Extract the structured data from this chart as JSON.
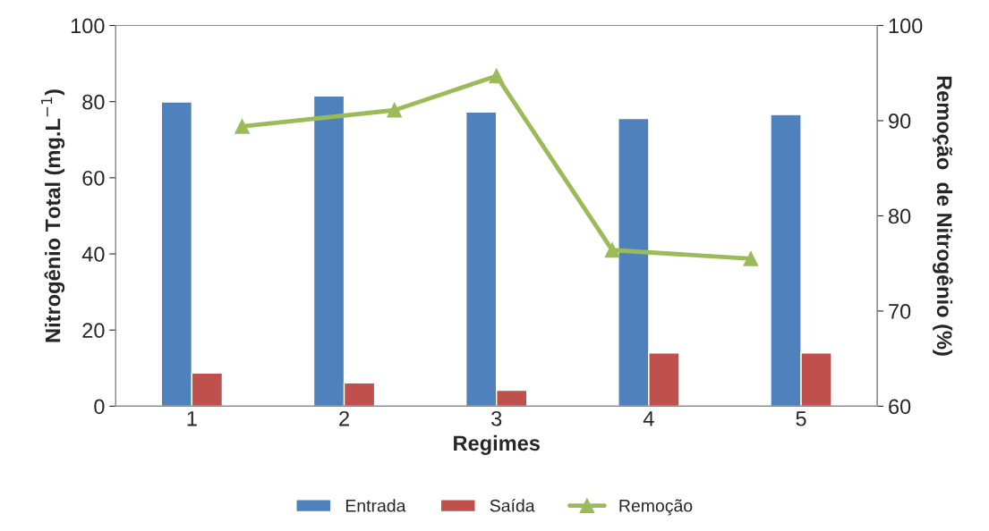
{
  "chart_data": {
    "type": "bar",
    "xlabel": "Regimes",
    "ylabel": "Nitrogênio Total (mg.L$^{−1}$)",
    "y2label": "Remoção  de Nitrogênio (%)",
    "x": [
      1,
      2,
      3,
      4,
      5
    ],
    "xlim": [
      0.5,
      5.5
    ],
    "xticks": [
      1,
      2,
      3,
      4,
      5
    ],
    "ylim": [
      0,
      100
    ],
    "yticks": [
      0,
      20,
      40,
      60,
      80,
      100
    ],
    "y2lim": [
      60,
      100
    ],
    "y2ticks": [
      60,
      70,
      80,
      90,
      100
    ],
    "series": [
      {
        "name": "Entrada",
        "color": "#4f81bd",
        "values": [
          79.9,
          81.5,
          77.3,
          75.6,
          76.6
        ]
      },
      {
        "name": "Saída",
        "color": "#c0504d",
        "values": [
          8.7,
          6.1,
          4.2,
          14,
          14
        ]
      },
      {
        "name": "Remoção",
        "color": "#9bbb59",
        "type": "line",
        "axis": "y2",
        "marker": "triangle",
        "x": [
          1.33,
          2.33,
          3,
          3.76,
          4.67
        ],
        "values": [
          89.4,
          91.1,
          94.7,
          76.4,
          75.5
        ]
      }
    ],
    "grid": false,
    "legend": "bottom"
  }
}
